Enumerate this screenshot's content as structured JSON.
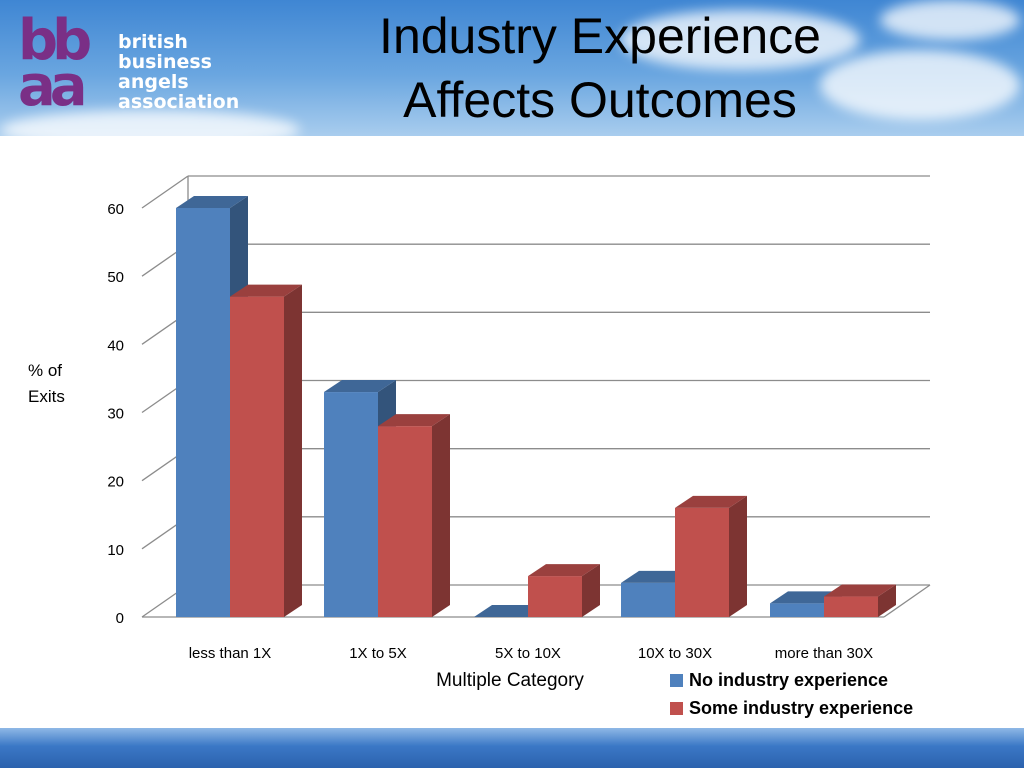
{
  "header": {
    "logo_mark": [
      "bb",
      "aa"
    ],
    "logo_words": [
      "british",
      "business",
      "angels",
      "association"
    ],
    "title_line1": "Industry Experience",
    "title_line2": "Affects Outcomes"
  },
  "colors": {
    "series1": "#4f81bd",
    "series2": "#c0504d"
  },
  "chart_data": {
    "type": "bar",
    "title": "",
    "categories": [
      "less than 1X",
      "1X to 5X",
      "5X to 10X",
      "10X to 30X",
      "more than 30X"
    ],
    "series": [
      {
        "name": "No industry experience",
        "values": [
          60,
          33,
          0,
          5,
          2
        ]
      },
      {
        "name": "Some industry experience",
        "values": [
          47,
          28,
          6,
          16,
          3
        ]
      }
    ],
    "xlabel": "Multiple Category",
    "ylabel": "% of Exits",
    "ylim": [
      0,
      60
    ],
    "yticks": [
      0,
      10,
      20,
      30,
      40,
      50,
      60
    ],
    "grid": true,
    "legend": "bottom-right",
    "style": "3d-clustered-column"
  }
}
